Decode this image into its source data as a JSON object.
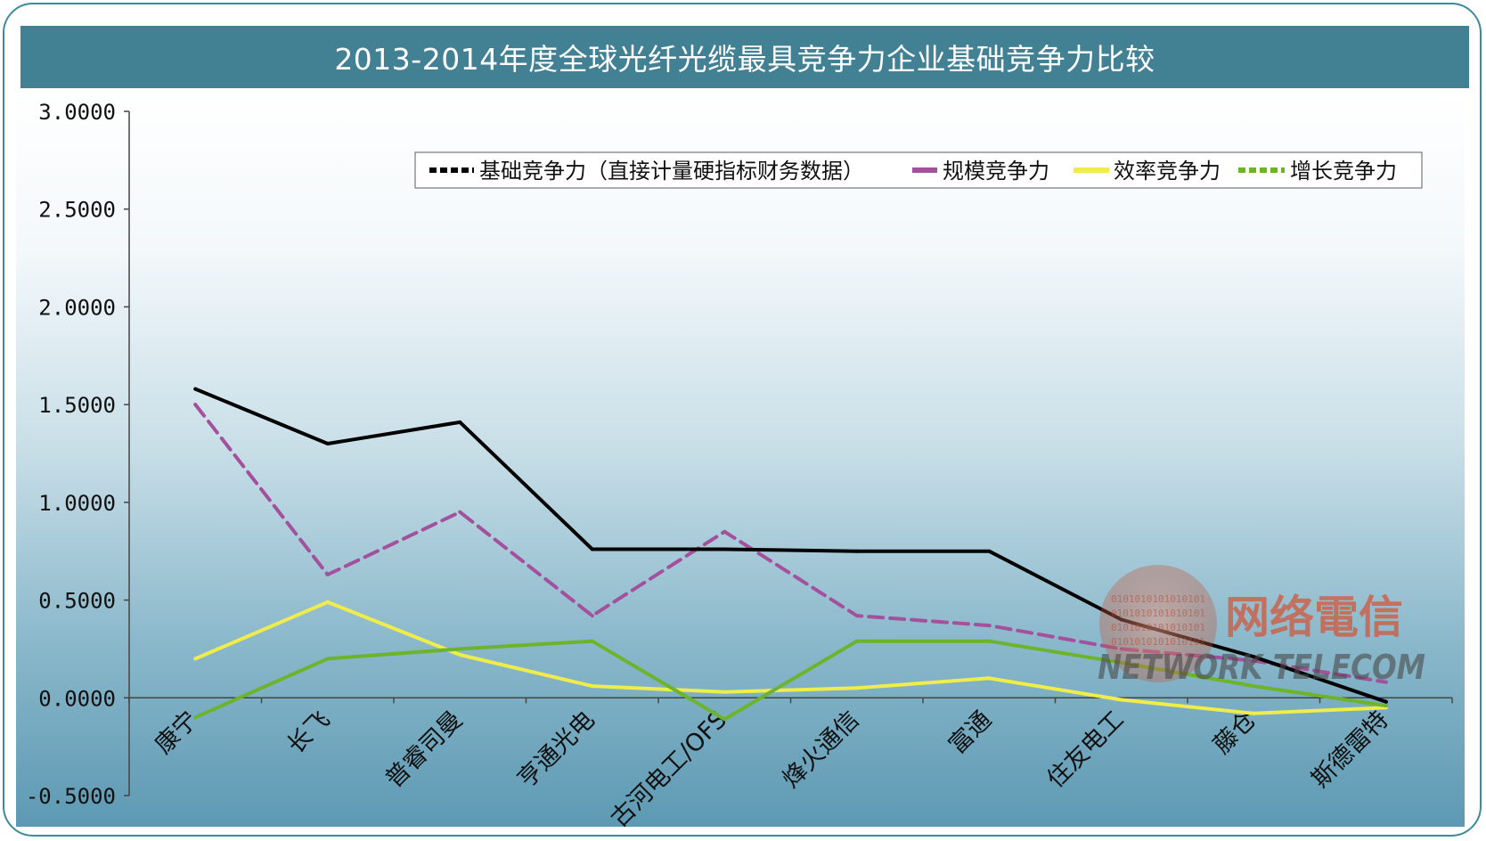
{
  "chart_data": {
    "type": "line",
    "title": "2013-2014年度全球光纤光缆最具竞争力企业基础竞争力比较",
    "categories": [
      "康宁",
      "长飞",
      "普睿司曼",
      "亨通光电",
      "古河电工/OFS",
      "烽火通信",
      "富通",
      "住友电工",
      "藤仓",
      "斯德雷特"
    ],
    "ylim": [
      -0.5,
      3.0
    ],
    "yticks": [
      "3.0000",
      "2.5000",
      "2.0000",
      "1.5000",
      "1.0000",
      "0.5000",
      "0.0000",
      "-0.5000"
    ],
    "ytick_values": [
      3.0,
      2.5,
      2.0,
      1.5,
      1.0,
      0.5,
      0.0,
      -0.5
    ],
    "legend_position": "top-right",
    "grid": false,
    "series": [
      {
        "name": "基础竞争力（直接计量硬指标财务数据）",
        "color": "#000000",
        "values": [
          1.58,
          1.3,
          1.41,
          0.76,
          0.76,
          0.75,
          0.75,
          0.4,
          0.21,
          -0.02
        ]
      },
      {
        "name": "规模竞争力",
        "color": "#a3519c",
        "values": [
          1.5,
          0.63,
          0.95,
          0.42,
          0.85,
          0.42,
          0.37,
          0.25,
          0.19,
          0.08
        ]
      },
      {
        "name": "效率竞争力",
        "color": "#f0ec4a",
        "values": [
          0.2,
          0.49,
          0.22,
          0.06,
          0.03,
          0.05,
          0.1,
          -0.01,
          -0.08,
          -0.05
        ]
      },
      {
        "name": "增长竞争力",
        "color": "#6cb42c",
        "values": [
          -0.1,
          0.2,
          0.25,
          0.29,
          -0.11,
          0.29,
          0.29,
          0.18,
          0.06,
          -0.04
        ]
      }
    ]
  },
  "watermark": {
    "brand_cn": "网络電信",
    "brand_en": "NETWORK TELECOM",
    "globe_text": "0101010101010101"
  }
}
